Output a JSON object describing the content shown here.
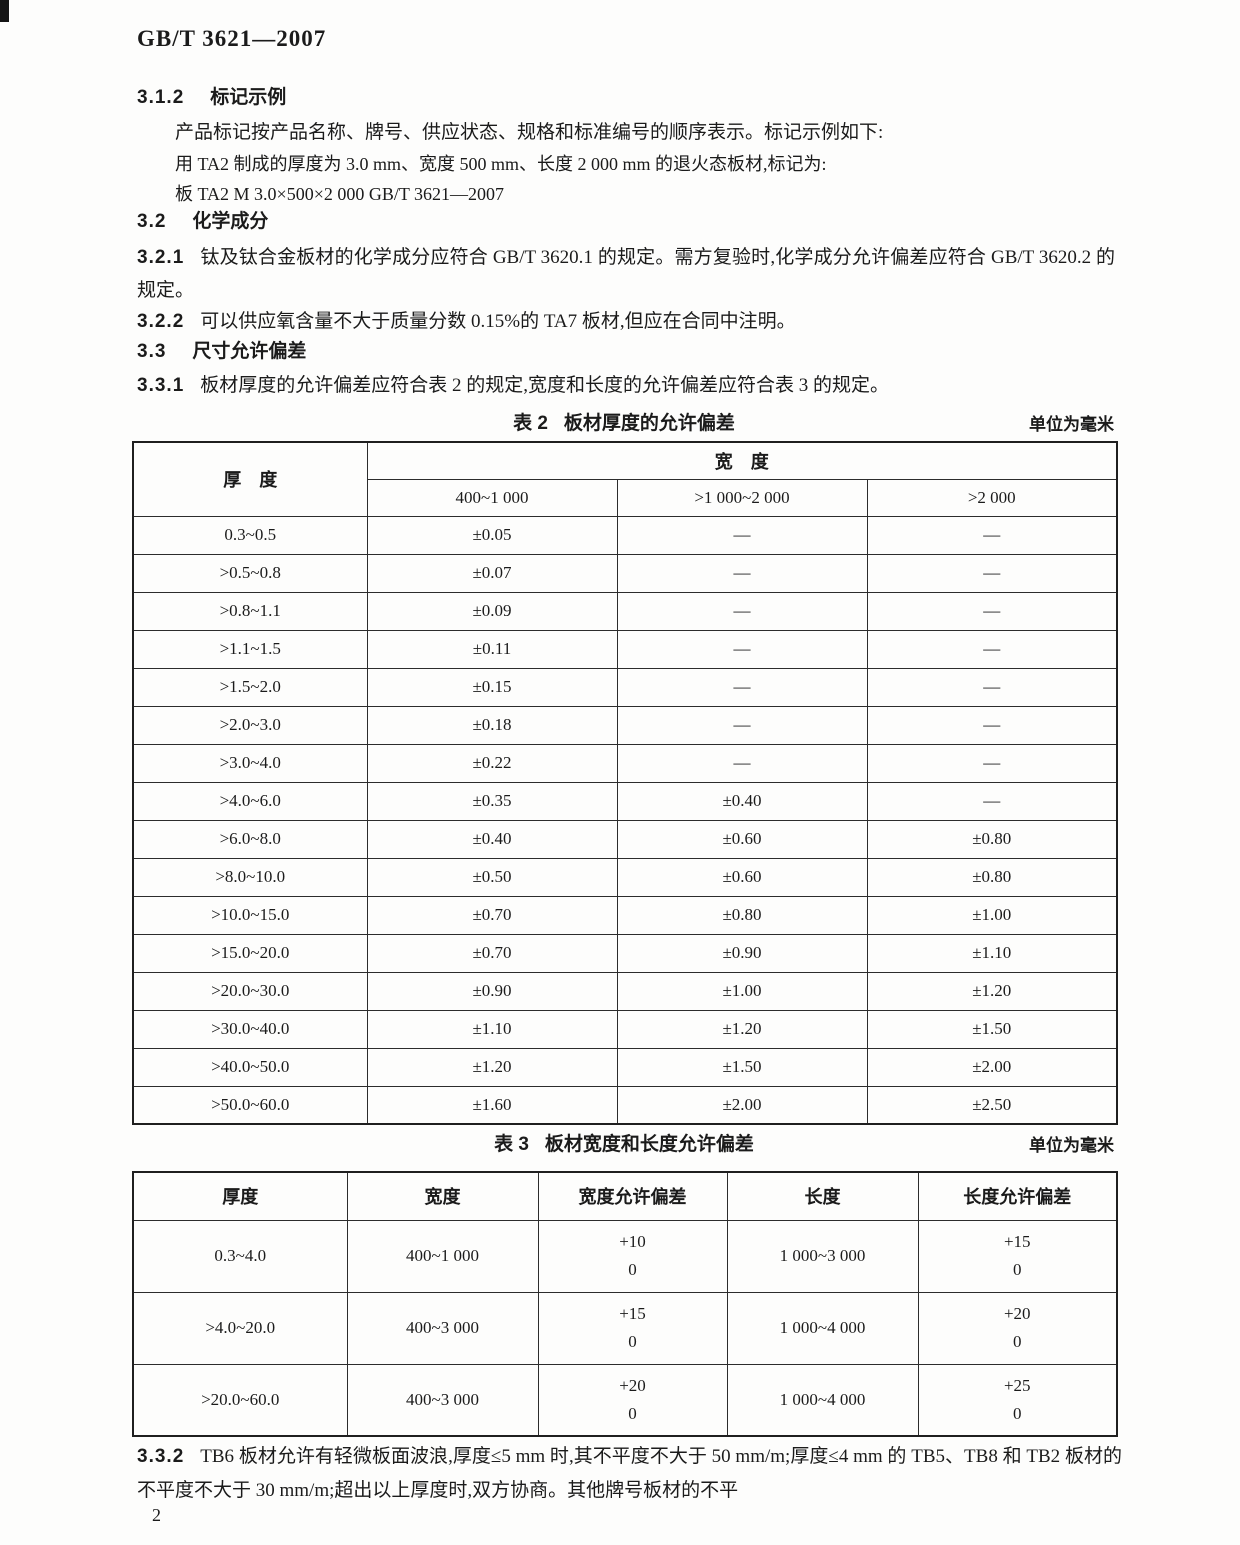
{
  "page": {
    "doc_number": "GB/T 3621—2007",
    "page_number": "2"
  },
  "sections": {
    "s312": {
      "number": "3.1.2",
      "title": "标记示例"
    },
    "s312_p1": "产品标记按产品名称、牌号、供应状态、规格和标准编号的顺序表示。标记示例如下:",
    "s312_p2": "用 TA2 制成的厚度为 3.0 mm、宽度 500 mm、长度 2 000 mm 的退火态板材,标记为:",
    "s312_p3": "板 TA2 M 3.0×500×2 000 GB/T 3621—2007",
    "s32": {
      "number": "3.2",
      "title": "化学成分"
    },
    "s321": {
      "number": "3.2.1",
      "text": "钛及钛合金板材的化学成分应符合 GB/T 3620.1 的规定。需方复验时,化学成分允许偏差应符合 GB/T 3620.2 的规定。"
    },
    "s322": {
      "number": "3.2.2",
      "text": "可以供应氧含量不大于质量分数 0.15%的 TA7 板材,但应在合同中注明。"
    },
    "s33": {
      "number": "3.3",
      "title": "尺寸允许偏差"
    },
    "s331": {
      "number": "3.3.1",
      "text": "板材厚度的允许偏差应符合表 2 的规定,宽度和长度的允许偏差应符合表 3 的规定。"
    },
    "s332": {
      "number": "3.3.2",
      "text": "TB6 板材允许有轻微板面波浪,厚度≤5 mm 时,其不平度不大于 50 mm/m;厚度≤4 mm 的 TB5、TB8 和 TB2 板材的不平度不大于 30 mm/m;超出以上厚度时,双方协商。其他牌号板材的不平"
    }
  },
  "table2": {
    "label": "表 2",
    "caption": "板材厚度的允许偏差",
    "unit": "单位为毫米",
    "header_thickness": "厚　度",
    "header_width_group": "宽　度",
    "sub_headers": [
      "400~1 000",
      ">1 000~2 000",
      ">2 000"
    ],
    "rows": [
      [
        "0.3~0.5",
        "±0.05",
        "—",
        "—"
      ],
      [
        ">0.5~0.8",
        "±0.07",
        "—",
        "—"
      ],
      [
        ">0.8~1.1",
        "±0.09",
        "—",
        "—"
      ],
      [
        ">1.1~1.5",
        "±0.11",
        "—",
        "—"
      ],
      [
        ">1.5~2.0",
        "±0.15",
        "—",
        "—"
      ],
      [
        ">2.0~3.0",
        "±0.18",
        "—",
        "—"
      ],
      [
        ">3.0~4.0",
        "±0.22",
        "—",
        "—"
      ],
      [
        ">4.0~6.0",
        "±0.35",
        "±0.40",
        "—"
      ],
      [
        ">6.0~8.0",
        "±0.40",
        "±0.60",
        "±0.80"
      ],
      [
        ">8.0~10.0",
        "±0.50",
        "±0.60",
        "±0.80"
      ],
      [
        ">10.0~15.0",
        "±0.70",
        "±0.80",
        "±1.00"
      ],
      [
        ">15.0~20.0",
        "±0.70",
        "±0.90",
        "±1.10"
      ],
      [
        ">20.0~30.0",
        "±0.90",
        "±1.00",
        "±1.20"
      ],
      [
        ">30.0~40.0",
        "±1.10",
        "±1.20",
        "±1.50"
      ],
      [
        ">40.0~50.0",
        "±1.20",
        "±1.50",
        "±2.00"
      ],
      [
        ">50.0~60.0",
        "±1.60",
        "±2.00",
        "±2.50"
      ]
    ]
  },
  "table3": {
    "label": "表 3",
    "caption": "板材宽度和长度允许偏差",
    "unit": "单位为毫米",
    "headers": [
      "厚度",
      "宽度",
      "宽度允许偏差",
      "长度",
      "长度允许偏差"
    ],
    "rows": [
      {
        "thickness": "0.3~4.0",
        "width": "400~1 000",
        "width_dev_plus": "+10",
        "width_dev_base": "0",
        "length": "1 000~3 000",
        "length_dev_plus": "+15",
        "length_dev_base": "0"
      },
      {
        "thickness": ">4.0~20.0",
        "width": "400~3 000",
        "width_dev_plus": "+15",
        "width_dev_base": "0",
        "length": "1 000~4 000",
        "length_dev_plus": "+20",
        "length_dev_base": "0"
      },
      {
        "thickness": ">20.0~60.0",
        "width": "400~3 000",
        "width_dev_plus": "+20",
        "width_dev_base": "0",
        "length": "1 000~4 000",
        "length_dev_plus": "+25",
        "length_dev_base": "0"
      }
    ]
  }
}
